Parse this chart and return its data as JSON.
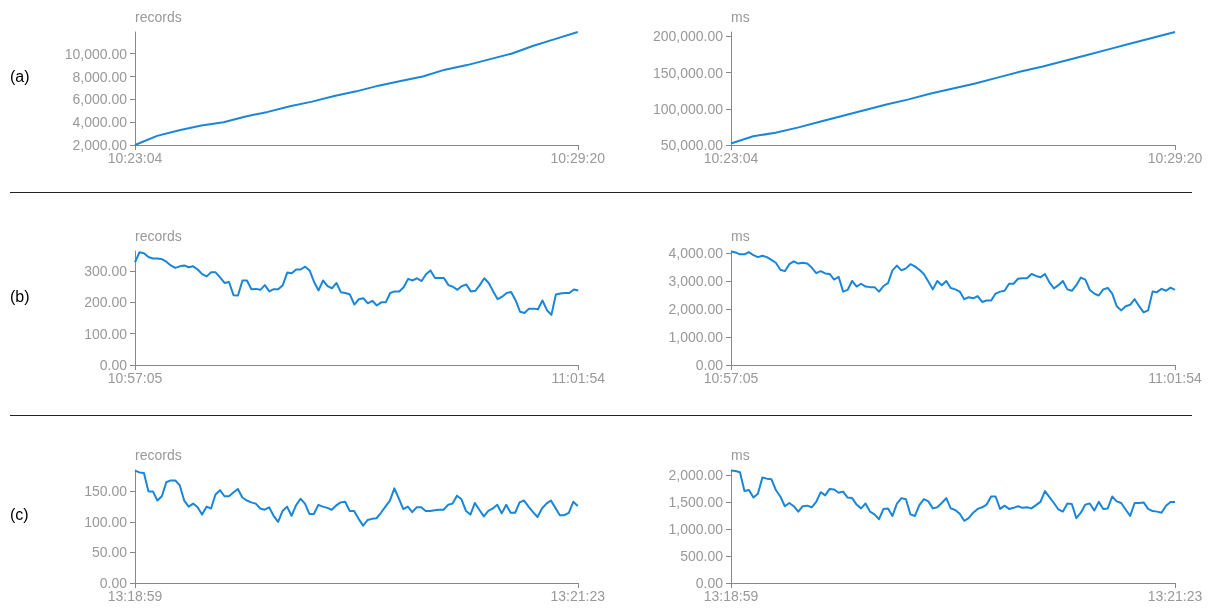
{
  "chart_data": [
    {
      "type": "line",
      "ylabel": "records",
      "annotations": [
        "(a)"
      ],
      "color": "#1a86d8",
      "marker": "none",
      "categories": [
        "10:23:04",
        null,
        null,
        null,
        null,
        null,
        null,
        null,
        null,
        null,
        null,
        null,
        null,
        null,
        null,
        null,
        null,
        null,
        null,
        null,
        "10:29:20"
      ],
      "values": [
        2000,
        2800,
        3300,
        3700,
        4000,
        4500,
        4900,
        5400,
        5800,
        6300,
        6700,
        7200,
        7600,
        8000,
        8600,
        9000,
        9500,
        10000,
        10700,
        11300,
        11900
      ],
      "ylim": [
        2000,
        11900
      ],
      "yticks": [
        {
          "value": 2000,
          "label": "2,000.00"
        },
        {
          "value": 4000,
          "label": "4,000.00"
        },
        {
          "value": 6000,
          "label": "6,000.00"
        },
        {
          "value": 8000,
          "label": "8,000.00"
        },
        {
          "value": 10000,
          "label": "10,000.00"
        }
      ]
    },
    {
      "type": "line",
      "ylabel": "ms",
      "color": "#1a86d8",
      "marker": "none",
      "categories": [
        "10:23:04",
        null,
        null,
        null,
        null,
        null,
        null,
        null,
        null,
        null,
        null,
        null,
        null,
        null,
        null,
        null,
        null,
        null,
        null,
        null,
        "10:29:20"
      ],
      "values": [
        52000,
        62000,
        67000,
        74000,
        82000,
        90000,
        98000,
        106000,
        113000,
        121000,
        128000,
        135000,
        143000,
        151000,
        158000,
        166000,
        174000,
        182000,
        190000,
        198000,
        206000
      ],
      "ylim": [
        50000,
        206000
      ],
      "yticks": [
        {
          "value": 50000,
          "label": "50,000.00"
        },
        {
          "value": 100000,
          "label": "100,000.00"
        },
        {
          "value": 150000,
          "label": "150,000.00"
        },
        {
          "value": 200000,
          "label": "200,000.00"
        }
      ]
    },
    {
      "type": "line",
      "ylabel": "records",
      "annotations": [
        "(b)"
      ],
      "color": "#1a86d8",
      "marker": "none",
      "categories": [
        "10:57:05",
        null,
        null,
        null,
        null,
        null,
        null,
        null,
        null,
        null,
        null,
        null,
        null,
        null,
        null,
        null,
        null,
        null,
        null,
        null,
        null,
        null,
        null,
        null,
        null,
        null,
        null,
        null,
        null,
        null,
        null,
        null,
        null,
        null,
        null,
        null,
        null,
        null,
        null,
        null,
        null,
        null,
        null,
        null,
        null,
        null,
        null,
        null,
        null,
        null,
        null,
        null,
        null,
        null,
        null,
        null,
        null,
        null,
        null,
        null,
        null,
        null,
        null,
        null,
        null,
        null,
        null,
        null,
        null,
        null,
        null,
        null,
        null,
        null,
        null,
        null,
        null,
        null,
        null,
        null,
        null,
        null,
        null,
        null,
        null,
        null,
        null,
        null,
        null,
        null,
        null,
        null,
        null,
        null,
        null,
        null,
        null,
        null,
        null,
        "11:01:54"
      ],
      "values": [
        328,
        360,
        357,
        345,
        340,
        340,
        338,
        330,
        318,
        310,
        315,
        318,
        312,
        315,
        305,
        290,
        283,
        296,
        296,
        280,
        262,
        265,
        223,
        222,
        270,
        270,
        242,
        243,
        240,
        255,
        235,
        242,
        242,
        255,
        295,
        293,
        305,
        305,
        314,
        302,
        265,
        238,
        270,
        252,
        245,
        262,
        232,
        230,
        225,
        193,
        210,
        213,
        197,
        205,
        190,
        200,
        200,
        230,
        235,
        235,
        248,
        275,
        270,
        277,
        268,
        290,
        302,
        278,
        278,
        278,
        255,
        250,
        240,
        252,
        257,
        235,
        237,
        255,
        277,
        262,
        235,
        210,
        218,
        230,
        233,
        207,
        170,
        166,
        180,
        180,
        178,
        206,
        175,
        160,
        225,
        228,
        230,
        230,
        241,
        238
      ],
      "ylim": [
        0,
        364
      ],
      "yticks": [
        {
          "value": 0,
          "label": "0.00"
        },
        {
          "value": 100,
          "label": "100.00"
        },
        {
          "value": 200,
          "label": "200.00"
        },
        {
          "value": 300,
          "label": "300.00"
        }
      ]
    },
    {
      "type": "line",
      "ylabel": "ms",
      "color": "#1a86d8",
      "marker": "none",
      "categories": [
        "10:57:05",
        null,
        null,
        null,
        null,
        null,
        null,
        null,
        null,
        null,
        null,
        null,
        null,
        null,
        null,
        null,
        null,
        null,
        null,
        null,
        null,
        null,
        null,
        null,
        null,
        null,
        null,
        null,
        null,
        null,
        null,
        null,
        null,
        null,
        null,
        null,
        null,
        null,
        null,
        null,
        null,
        null,
        null,
        null,
        null,
        null,
        null,
        null,
        null,
        null,
        null,
        null,
        null,
        null,
        null,
        null,
        null,
        null,
        null,
        null,
        null,
        null,
        null,
        null,
        null,
        null,
        null,
        null,
        null,
        null,
        null,
        null,
        null,
        null,
        null,
        null,
        null,
        null,
        null,
        null,
        null,
        null,
        null,
        null,
        null,
        null,
        null,
        null,
        null,
        null,
        null,
        null,
        null,
        null,
        null,
        null,
        null,
        null,
        null,
        "11:01:54"
      ],
      "values": [
        4050,
        4020,
        3950,
        3950,
        4030,
        3920,
        3850,
        3900,
        3850,
        3750,
        3650,
        3400,
        3350,
        3600,
        3700,
        3620,
        3650,
        3620,
        3480,
        3280,
        3350,
        3270,
        3250,
        3050,
        3150,
        2620,
        2680,
        3000,
        2800,
        2900,
        2800,
        2780,
        2780,
        2620,
        2820,
        2920,
        3380,
        3550,
        3380,
        3450,
        3600,
        3520,
        3400,
        3250,
        2980,
        2700,
        3000,
        2850,
        3000,
        2750,
        2700,
        2620,
        2350,
        2420,
        2380,
        2460,
        2250,
        2300,
        2300,
        2550,
        2620,
        2650,
        2900,
        2900,
        3080,
        3100,
        3100,
        3250,
        3180,
        3130,
        3250,
        2950,
        2730,
        2850,
        3000,
        2700,
        2650,
        2850,
        3120,
        3050,
        2680,
        2550,
        2480,
        2700,
        2750,
        2550,
        2100,
        1950,
        2100,
        2150,
        2350,
        2100,
        1880,
        1950,
        2620,
        2600,
        2720,
        2650,
        2760,
        2680
      ],
      "ylim": [
        0,
        4070
      ],
      "yticks": [
        {
          "value": 0,
          "label": "0.00"
        },
        {
          "value": 1000,
          "label": "1,000.00"
        },
        {
          "value": 2000,
          "label": "2,000.00"
        },
        {
          "value": 3000,
          "label": "3,000.00"
        },
        {
          "value": 4000,
          "label": "4,000.00"
        }
      ]
    },
    {
      "type": "line",
      "ylabel": "records",
      "annotations": [
        "(c)"
      ],
      "color": "#1a86d8",
      "marker": "none",
      "categories": [
        "13:18:59",
        null,
        null,
        null,
        null,
        null,
        null,
        null,
        null,
        null,
        null,
        null,
        null,
        null,
        null,
        null,
        null,
        null,
        null,
        null,
        null,
        null,
        null,
        null,
        null,
        null,
        null,
        null,
        null,
        null,
        null,
        null,
        null,
        null,
        null,
        null,
        null,
        null,
        null,
        null,
        null,
        null,
        null,
        null,
        null,
        null,
        null,
        null,
        null,
        null,
        null,
        null,
        null,
        null,
        null,
        null,
        null,
        null,
        null,
        null,
        null,
        null,
        null,
        null,
        null,
        null,
        null,
        null,
        null,
        null,
        null,
        null,
        null,
        null,
        null,
        null,
        null,
        null,
        null,
        null,
        null,
        null,
        null,
        null,
        null,
        null,
        null,
        null,
        null,
        null,
        null,
        null,
        null,
        null,
        null,
        null,
        null,
        null,
        null,
        "13:21:23"
      ],
      "values": [
        184,
        181,
        180,
        150,
        150,
        135,
        142,
        165,
        168,
        168,
        160,
        135,
        125,
        130,
        124,
        112,
        125,
        122,
        145,
        152,
        142,
        142,
        148,
        154,
        140,
        135,
        132,
        130,
        122,
        120,
        124,
        110,
        100,
        118,
        125,
        110,
        127,
        138,
        130,
        113,
        113,
        128,
        125,
        123,
        120,
        127,
        132,
        133,
        118,
        118,
        105,
        94,
        103,
        105,
        106,
        115,
        125,
        135,
        155,
        138,
        121,
        125,
        116,
        124,
        124,
        118,
        118,
        119,
        120,
        120,
        128,
        130,
        143,
        137,
        118,
        112,
        131,
        120,
        109,
        118,
        122,
        128,
        114,
        128,
        115,
        115,
        132,
        135,
        125,
        116,
        108,
        122,
        130,
        135,
        123,
        111,
        111,
        115,
        133,
        126
      ],
      "ylim": [
        0,
        185
      ],
      "yticks": [
        {
          "value": 0,
          "label": "0.00"
        },
        {
          "value": 50,
          "label": "50.00"
        },
        {
          "value": 100,
          "label": "100.00"
        },
        {
          "value": 150,
          "label": "150.00"
        }
      ]
    },
    {
      "type": "line",
      "ylabel": "ms",
      "color": "#1a86d8",
      "marker": "none",
      "categories": [
        "13:18:59",
        null,
        null,
        null,
        null,
        null,
        null,
        null,
        null,
        null,
        null,
        null,
        null,
        null,
        null,
        null,
        null,
        null,
        null,
        null,
        null,
        null,
        null,
        null,
        null,
        null,
        null,
        null,
        null,
        null,
        null,
        null,
        null,
        null,
        null,
        null,
        null,
        null,
        null,
        null,
        null,
        null,
        null,
        null,
        null,
        null,
        null,
        null,
        null,
        null,
        null,
        null,
        null,
        null,
        null,
        null,
        null,
        null,
        null,
        null,
        null,
        null,
        null,
        null,
        null,
        null,
        null,
        null,
        null,
        null,
        null,
        null,
        null,
        null,
        null,
        null,
        null,
        null,
        null,
        null,
        null,
        null,
        null,
        null,
        null,
        null,
        null,
        null,
        null,
        null,
        null,
        null,
        null,
        null,
        null,
        null,
        null,
        null,
        null,
        "13:21:23"
      ],
      "values": [
        2080,
        2070,
        2050,
        1700,
        1720,
        1580,
        1650,
        1950,
        1930,
        1920,
        1720,
        1600,
        1420,
        1480,
        1420,
        1320,
        1420,
        1430,
        1400,
        1500,
        1680,
        1620,
        1740,
        1730,
        1670,
        1690,
        1580,
        1570,
        1450,
        1380,
        1470,
        1320,
        1270,
        1180,
        1370,
        1380,
        1240,
        1470,
        1570,
        1550,
        1270,
        1240,
        1440,
        1550,
        1510,
        1380,
        1400,
        1480,
        1570,
        1380,
        1350,
        1280,
        1150,
        1200,
        1300,
        1370,
        1400,
        1450,
        1600,
        1600,
        1370,
        1430,
        1370,
        1390,
        1420,
        1390,
        1400,
        1380,
        1440,
        1500,
        1700,
        1590,
        1480,
        1360,
        1320,
        1470,
        1460,
        1200,
        1300,
        1450,
        1470,
        1340,
        1500,
        1370,
        1380,
        1600,
        1510,
        1480,
        1360,
        1240,
        1480,
        1480,
        1490,
        1370,
        1330,
        1320,
        1300,
        1430,
        1500,
        1500
      ],
      "ylim": [
        0,
        2090
      ],
      "yticks": [
        {
          "value": 0,
          "label": "0.00"
        },
        {
          "value": 500,
          "label": "500.00"
        },
        {
          "value": 1000,
          "label": "1,000.00"
        },
        {
          "value": 1500,
          "label": "1,500.00"
        },
        {
          "value": 2000,
          "label": "2,000.00"
        }
      ]
    }
  ]
}
